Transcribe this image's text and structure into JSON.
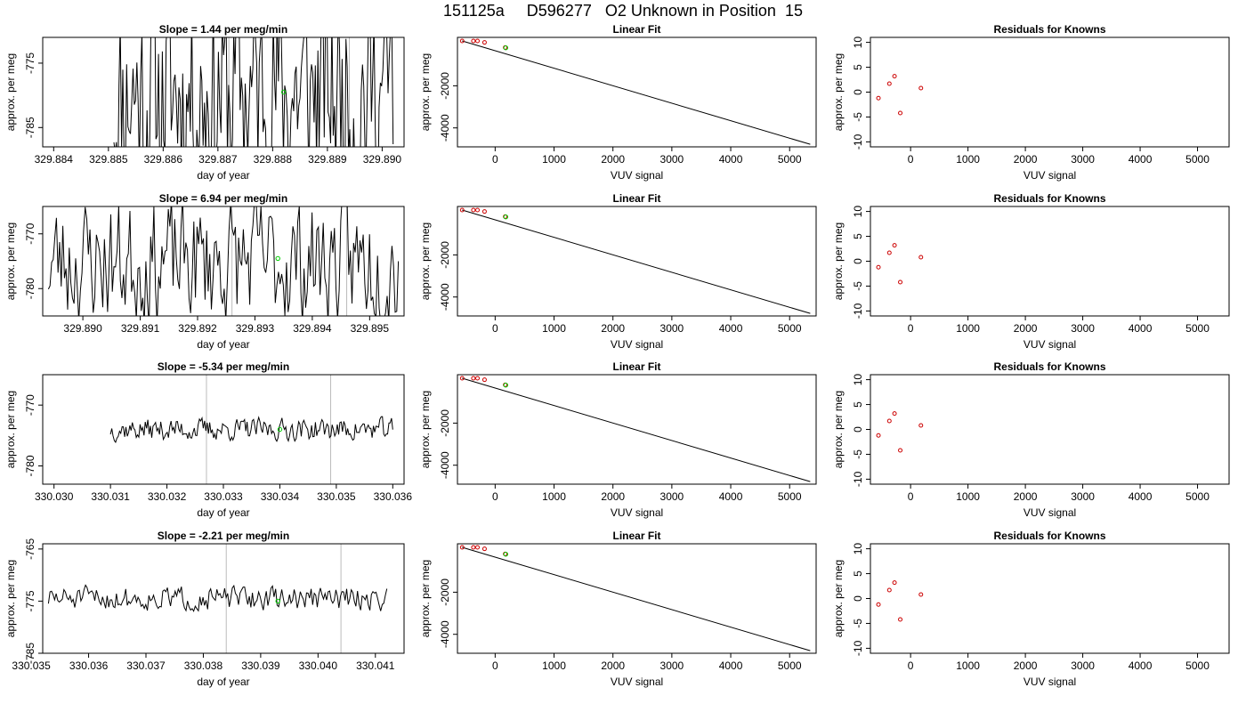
{
  "title": "151125a     D596277   O2 Unknown in Position  15",
  "colors": {
    "frame": "#000000",
    "series": "#000000",
    "known_marker": "#cc0000",
    "unknown_marker": "#00cc00",
    "grid_marker": "#bbbbbb"
  },
  "chart_data": [
    {
      "type": "line",
      "panel": "slope-row-1",
      "title": "Slope =  1.44  per meg/min",
      "xlabel": "day of year",
      "ylabel": "approx. per meg",
      "xlim": [
        329.8838,
        329.8904
      ],
      "ylim": [
        -788,
        -771
      ],
      "xticks": [
        "329.884",
        "329.885",
        "329.886",
        "329.887",
        "329.888",
        "329.889",
        "329.890"
      ],
      "yticks": [
        "-775",
        "-785"
      ],
      "vlines": [
        329.8872,
        329.8894
      ],
      "unknown_point": {
        "x": 329.8882,
        "y": -779.5
      },
      "series_seed": 11,
      "series_volatility": 30,
      "series_start": 329.8851,
      "series_end": 329.8902
    },
    {
      "type": "line",
      "panel": "slope-row-2",
      "title": "Slope =  6.94  per meg/min",
      "xlabel": "day of year",
      "ylabel": "approx. per meg",
      "xlim": [
        329.8893,
        329.8956
      ],
      "ylim": [
        -785,
        -765
      ],
      "xticks": [
        "329.890",
        "329.891",
        "329.892",
        "329.893",
        "329.894",
        "329.895"
      ],
      "yticks": [
        "-770",
        "-780"
      ],
      "vlines": [
        329.8926,
        329.8946
      ],
      "unknown_point": {
        "x": 329.8934,
        "y": -774.5
      },
      "series_seed": 23,
      "series_volatility": 20,
      "series_start": 329.8894,
      "series_end": 329.8955
    },
    {
      "type": "line",
      "panel": "slope-row-3",
      "title": "Slope =  -5.34  per meg/min",
      "xlabel": "day of year",
      "ylabel": "approx. per meg",
      "xlim": [
        330.0298,
        330.0362
      ],
      "ylim": [
        -783,
        -765
      ],
      "xticks": [
        "330.030",
        "330.031",
        "330.032",
        "330.033",
        "330.034",
        "330.035",
        "330.036"
      ],
      "yticks": [
        "-770",
        "-780"
      ],
      "vlines": [
        330.0327,
        330.0349
      ],
      "unknown_point": {
        "x": 330.034,
        "y": -774
      },
      "series_seed": 37,
      "series_volatility": 3.2,
      "series_start": 330.031,
      "series_end": 330.036
    },
    {
      "type": "line",
      "panel": "slope-row-4",
      "title": "Slope =  -2.21  per meg/min",
      "xlabel": "day of year",
      "ylabel": "approx. per meg",
      "xlim": [
        330.0352,
        330.0415
      ],
      "ylim": [
        -785,
        -764
      ],
      "xticks": [
        "330.035",
        "330.036",
        "330.037",
        "330.038",
        "330.039",
        "330.040",
        "330.041"
      ],
      "yticks": [
        "-765",
        "-775",
        "-785"
      ],
      "vlines": [
        330.0384,
        330.0404
      ],
      "unknown_point": {
        "x": 330.0393,
        "y": -775
      },
      "series_seed": 51,
      "series_volatility": 4,
      "series_start": 330.0353,
      "series_end": 330.0412
    },
    {
      "type": "scatter",
      "panel": "linear-fit",
      "title": "Linear Fit",
      "xlabel": "VUV signal",
      "ylabel": "approx. per meg",
      "xlim": [
        -640,
        5450
      ],
      "ylim": [
        -4900,
        300
      ],
      "xticks": [
        0,
        1000,
        2000,
        3000,
        4000,
        5000
      ],
      "yticks": [
        -2000,
        -4000
      ],
      "known_points": [
        {
          "x": -560,
          "y": 380
        },
        {
          "x": -370,
          "y": 220
        },
        {
          "x": -300,
          "y": 150
        },
        {
          "x": -180,
          "y": 60
        },
        {
          "x": 170,
          "y": -180
        }
      ],
      "unknown_point": {
        "x": 180,
        "y": -195
      },
      "fit_line": {
        "x1": -560,
        "y1": 380,
        "x2": 5350,
        "y2": -4780
      },
      "repeats": 4
    },
    {
      "type": "scatter",
      "panel": "residuals",
      "title": "Residuals for Knowns",
      "xlabel": "VUV signal",
      "ylabel": "approx. per meg",
      "xlim": [
        -700,
        5550
      ],
      "ylim": [
        -11,
        11
      ],
      "xticks": [
        0,
        1000,
        2000,
        3000,
        4000,
        5000
      ],
      "yticks": [
        10,
        5,
        0,
        -5,
        -10
      ],
      "points": [
        {
          "x": -560,
          "y": -1.2
        },
        {
          "x": -370,
          "y": 1.7
        },
        {
          "x": -280,
          "y": 3.2
        },
        {
          "x": -180,
          "y": -4.2
        },
        {
          "x": 180,
          "y": 0.8
        }
      ],
      "repeats": 4
    }
  ]
}
